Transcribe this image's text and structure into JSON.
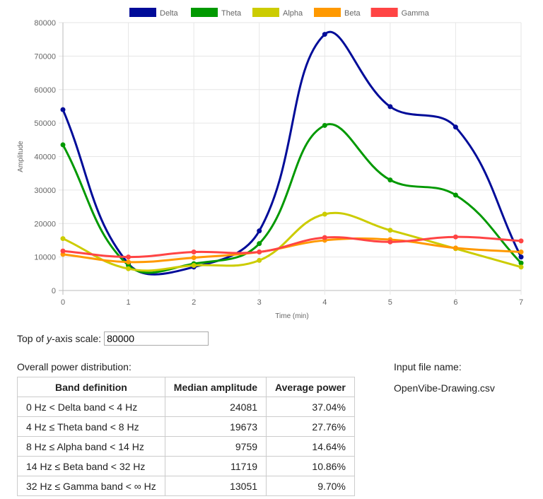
{
  "chart_data": {
    "type": "line",
    "xlabel": "Time (min)",
    "ylabel": "Amplitude",
    "x": [
      0,
      1,
      2,
      3,
      4,
      5,
      6,
      7
    ],
    "xlim": [
      0,
      7
    ],
    "ylim": [
      0,
      80000
    ],
    "yticks": [
      0,
      10000,
      20000,
      30000,
      40000,
      50000,
      60000,
      70000,
      80000
    ],
    "grid": true,
    "legend": "top",
    "smooth": true,
    "series": [
      {
        "name": "Delta",
        "color": "#000c99",
        "values": [
          54000,
          8000,
          7000,
          17800,
          76500,
          54900,
          48800,
          10000
        ]
      },
      {
        "name": "Theta",
        "color": "#009900",
        "values": [
          43500,
          7500,
          8000,
          14000,
          49300,
          33000,
          28500,
          8200
        ]
      },
      {
        "name": "Alpha",
        "color": "#cccc00",
        "values": [
          15500,
          6500,
          7500,
          9000,
          22800,
          18000,
          12500,
          7000
        ]
      },
      {
        "name": "Beta",
        "color": "#ff9900",
        "values": [
          10800,
          8500,
          9800,
          11500,
          15000,
          15200,
          12700,
          11500
        ]
      },
      {
        "name": "Gamma",
        "color": "#ff4444",
        "values": [
          11800,
          10000,
          11500,
          11500,
          15800,
          14500,
          16000,
          14800
        ]
      }
    ]
  },
  "controls": {
    "y_top_label_pre": "Top of ",
    "y_top_label_em": "y",
    "y_top_label_post": "-axis scale:",
    "y_top_value": "80000"
  },
  "distribution": {
    "title": "Overall power distribution:",
    "headers": [
      "Band definition",
      "Median amplitude",
      "Average power"
    ],
    "rows": [
      [
        "0 Hz < Delta band < 4 Hz",
        "24081",
        "37.04%"
      ],
      [
        "4 Hz ≤ Theta band < 8 Hz",
        "19673",
        "27.76%"
      ],
      [
        "8 Hz ≤ Alpha band < 14 Hz",
        "9759",
        "14.64%"
      ],
      [
        "14 Hz ≤ Beta band < 32 Hz",
        "11719",
        "10.86%"
      ],
      [
        "32 Hz ≤ Gamma band < ∞ Hz",
        "13051",
        "9.70%"
      ]
    ]
  },
  "file": {
    "label": "Input file name:",
    "name": "OpenVibe-Drawing.csv"
  }
}
